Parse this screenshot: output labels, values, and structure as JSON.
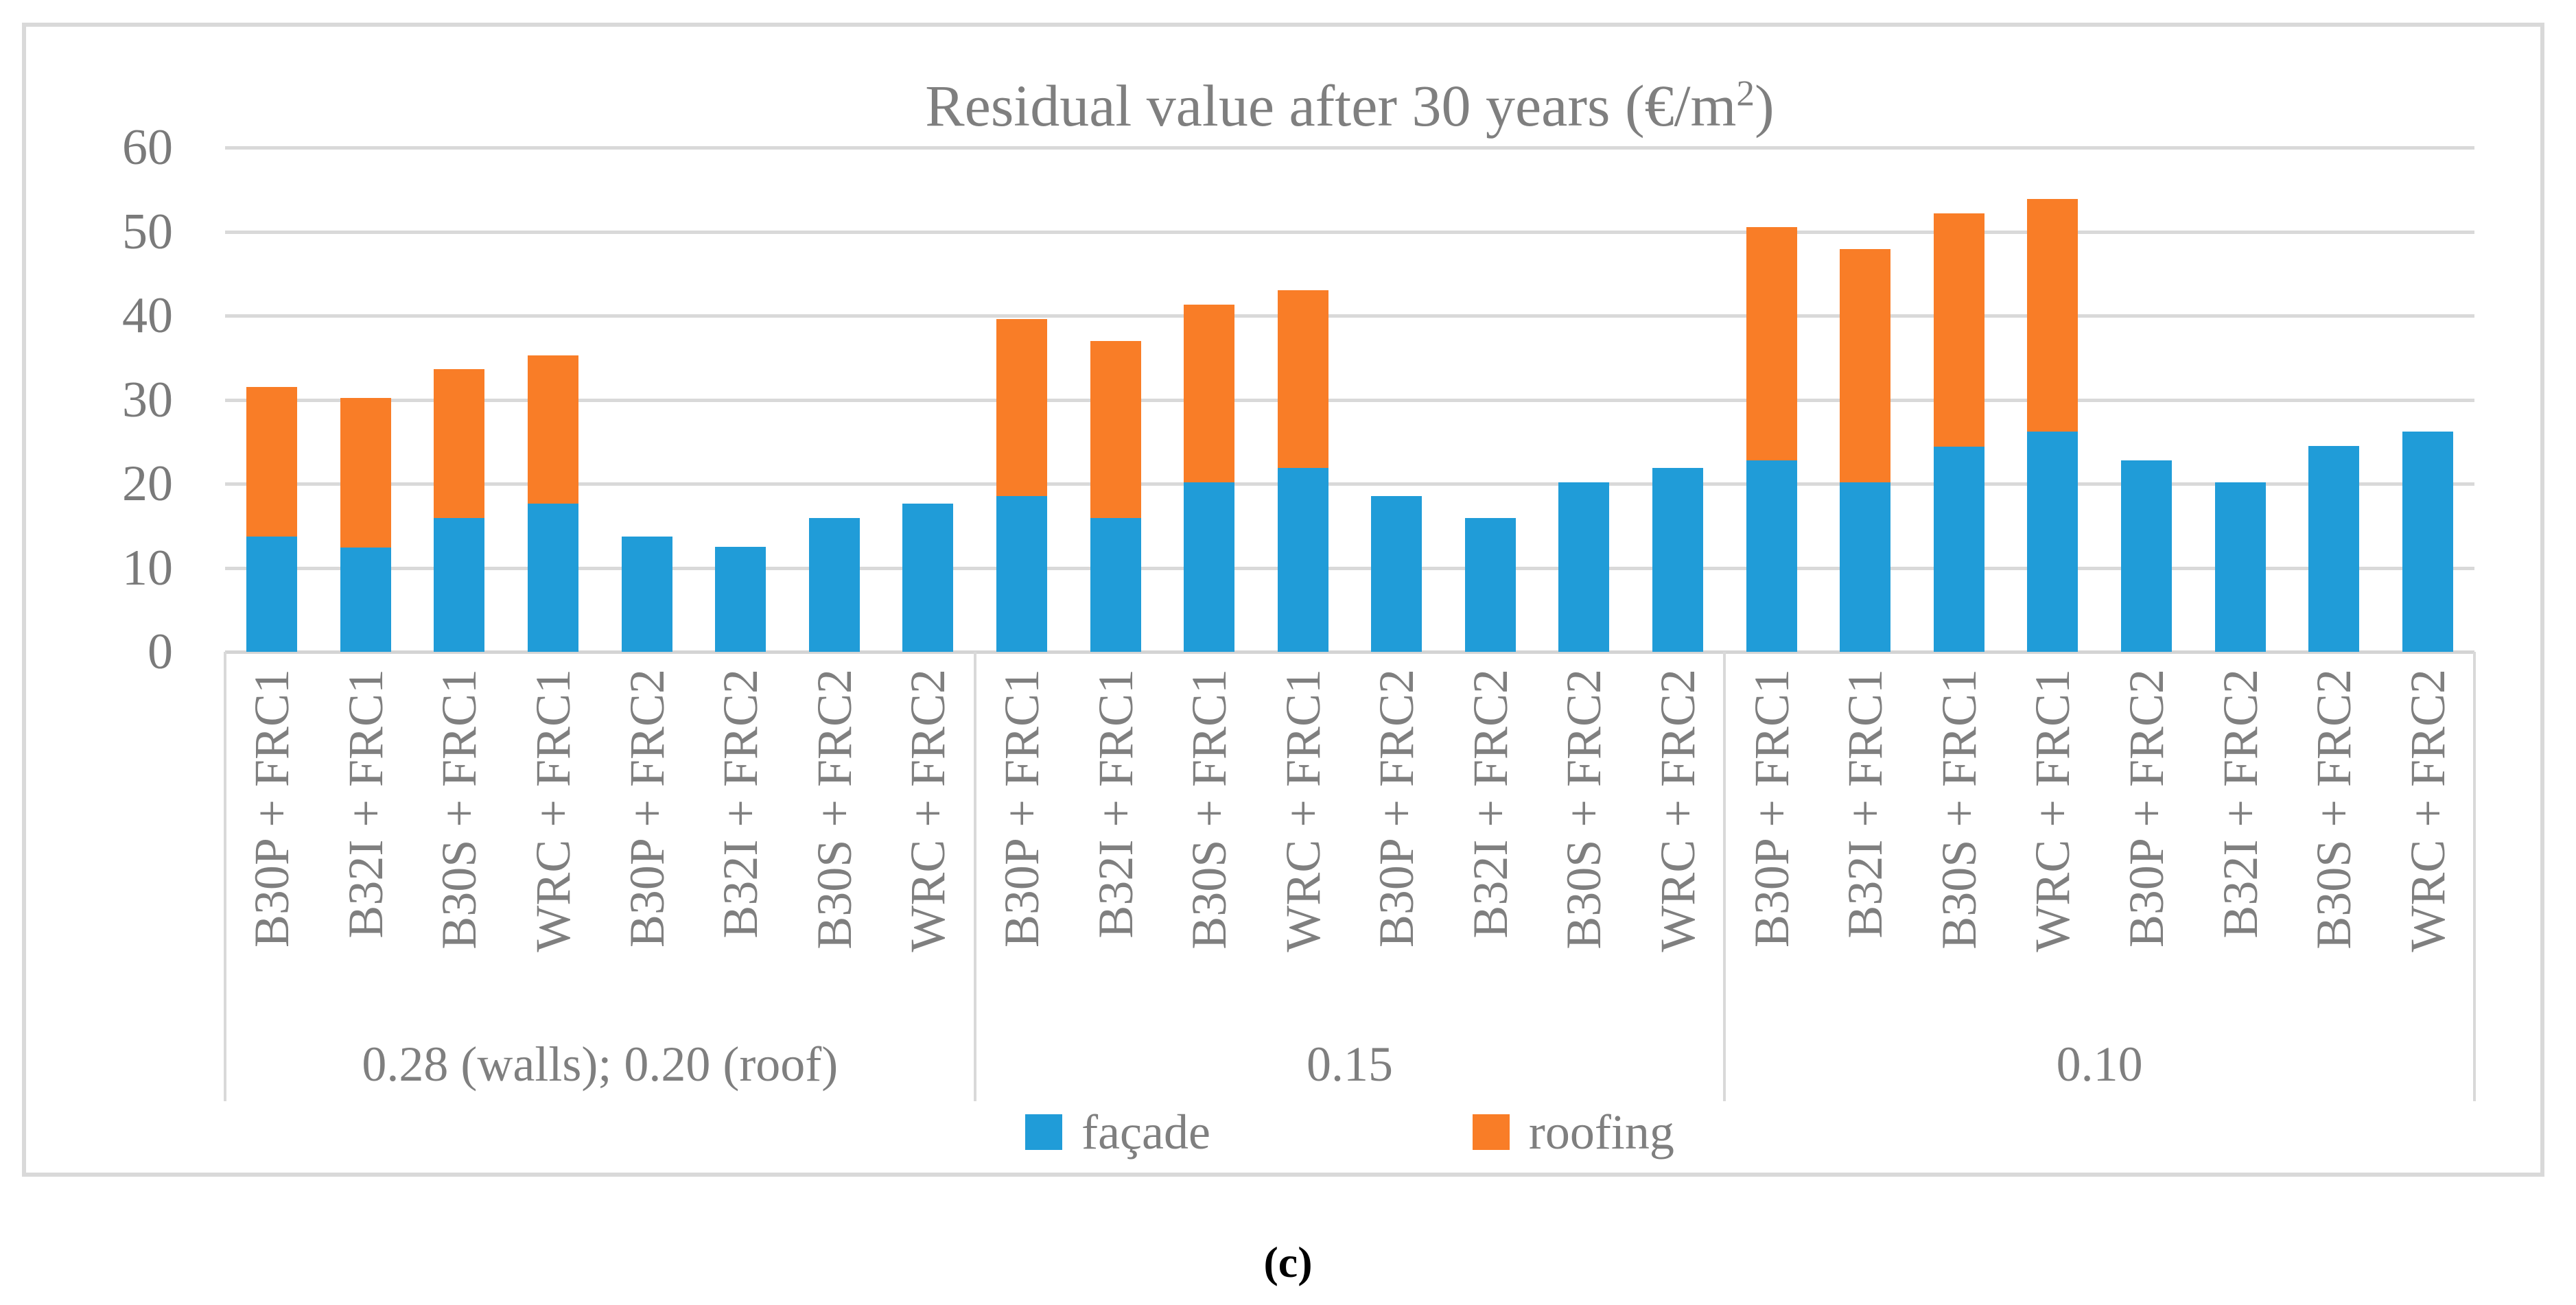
{
  "figure": {
    "title": "Residual value after 30 years (€/m²)",
    "caption": "(c)"
  },
  "y_axis": {
    "tick_labels": [
      "60",
      "50",
      "40",
      "30",
      "20",
      "10",
      "0"
    ],
    "min": 0,
    "max": 60
  },
  "legend": [
    {
      "label": "façade",
      "color": "#209cd8"
    },
    {
      "label": "roofing",
      "color": "#f97d27"
    }
  ],
  "chart_data": {
    "type": "bar",
    "stacked": true,
    "title": "Residual value after 30 years (€/m²)",
    "xlabel": "",
    "ylabel": "",
    "ylim": [
      0,
      60
    ],
    "yticks": [
      0,
      10,
      20,
      30,
      40,
      50,
      60
    ],
    "grid": true,
    "legend_position": "bottom",
    "series_names": [
      "façade",
      "roofing"
    ],
    "colors": {
      "façade": "#209cd8",
      "roofing": "#f97d27"
    },
    "categories": [
      "B30P + FRC1",
      "B32I + FRC1",
      "B30S + FRC1",
      "WRC + FRC1",
      "B30P + FRC2",
      "B32I + FRC2",
      "B30S + FRC2",
      "WRC + FRC2"
    ],
    "groups": [
      {
        "label": "0.28 (walls); 0.20 (roof)",
        "series": {
          "façade": [
            13.7,
            12.4,
            15.9,
            17.6,
            13.7,
            12.5,
            15.9,
            17.6
          ],
          "roofing": [
            17.8,
            17.8,
            17.7,
            17.7,
            0,
            0,
            0,
            0
          ]
        }
      },
      {
        "label": "0.15",
        "series": {
          "façade": [
            18.5,
            15.9,
            20.2,
            21.9,
            18.5,
            15.9,
            20.2,
            21.9
          ],
          "roofing": [
            21.1,
            21.1,
            21.1,
            21.1,
            0,
            0,
            0,
            0
          ]
        }
      },
      {
        "label": "0.10",
        "series": {
          "façade": [
            22.8,
            20.2,
            24.4,
            26.2,
            22.8,
            20.2,
            24.5,
            26.2
          ],
          "roofing": [
            27.7,
            27.7,
            27.8,
            27.7,
            0,
            0,
            0,
            0
          ]
        }
      }
    ]
  }
}
